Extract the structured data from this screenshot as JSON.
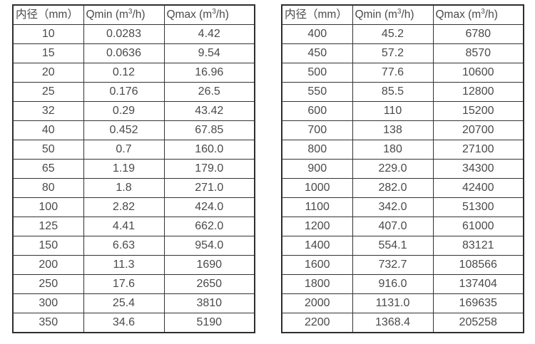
{
  "page": {
    "background": "#ffffff",
    "text_color": "#4a4a4a",
    "border_color": "#333333"
  },
  "tables": [
    {
      "headers": {
        "diameter": "内径（mm）",
        "qmin": {
          "pre": "Qmin (m",
          "sup": "3",
          "post": "/h)"
        },
        "qmax": {
          "pre": "Qmax (m",
          "sup": "3",
          "post": "/h)"
        }
      },
      "rows": [
        [
          "10",
          "0.0283",
          "4.42"
        ],
        [
          "15",
          "0.0636",
          "9.54"
        ],
        [
          "20",
          "0.12",
          "16.96"
        ],
        [
          "25",
          "0.176",
          "26.5"
        ],
        [
          "32",
          "0.29",
          "43.42"
        ],
        [
          "40",
          "0.452",
          "67.85"
        ],
        [
          "50",
          "0.7",
          "160.0"
        ],
        [
          "65",
          "1.19",
          "179.0"
        ],
        [
          "80",
          "1.8",
          "271.0"
        ],
        [
          "100",
          "2.82",
          "424.0"
        ],
        [
          "125",
          "4.41",
          "662.0"
        ],
        [
          "150",
          "6.63",
          "954.0"
        ],
        [
          "200",
          "11.3",
          "1690"
        ],
        [
          "250",
          "17.6",
          "2650"
        ],
        [
          "300",
          "25.4",
          "3810"
        ],
        [
          "350",
          "34.6",
          "5190"
        ]
      ]
    },
    {
      "headers": {
        "diameter": "内径（mm）",
        "qmin": {
          "pre": "Qmin (m",
          "sup": "3",
          "post": "/h)"
        },
        "qmax": {
          "pre": "Qmax (m",
          "sup": "3",
          "post": "/h)"
        }
      },
      "rows": [
        [
          "400",
          "45.2",
          "6780"
        ],
        [
          "450",
          "57.2",
          "8570"
        ],
        [
          "500",
          "77.6",
          "10600"
        ],
        [
          "550",
          "85.5",
          "12800"
        ],
        [
          "600",
          "110",
          "15200"
        ],
        [
          "700",
          "138",
          "20700"
        ],
        [
          "800",
          "180",
          "27100"
        ],
        [
          "900",
          "229.0",
          "34300"
        ],
        [
          "1000",
          "282.0",
          "42400"
        ],
        [
          "1100",
          "342.0",
          "51300"
        ],
        [
          "1200",
          "407.0",
          "61000"
        ],
        [
          "1400",
          "554.1",
          "83121"
        ],
        [
          "1600",
          "732.7",
          "108566"
        ],
        [
          "1800",
          "916.0",
          "137404"
        ],
        [
          "2000",
          "1131.0",
          "169635"
        ],
        [
          "2200",
          "1368.4",
          "205258"
        ]
      ]
    }
  ]
}
